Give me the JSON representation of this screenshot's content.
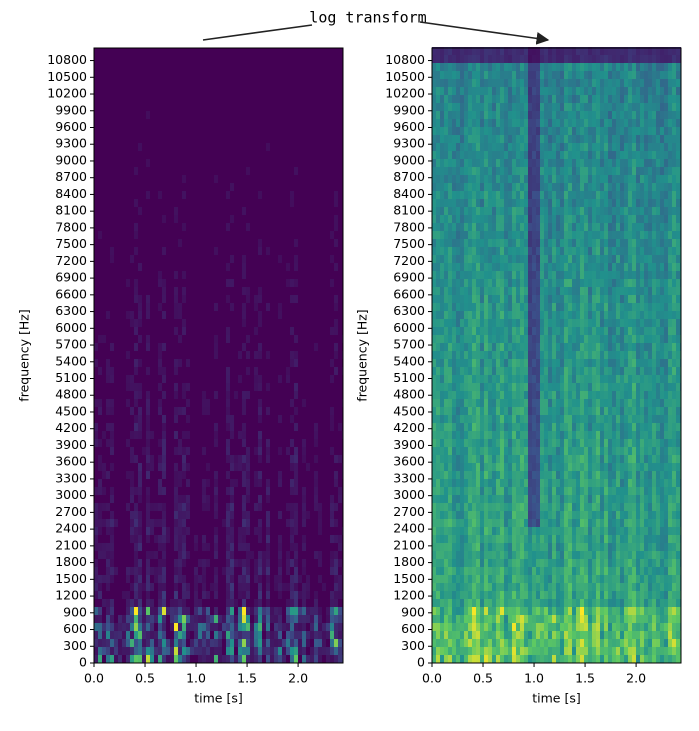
{
  "annotation": "log transform",
  "chart_data": [
    {
      "type": "heatmap",
      "scale": "linear",
      "colormap": "viridis",
      "xlabel": "time [s]",
      "ylabel": "frequency [Hz]",
      "xlim": [
        0,
        2.44
      ],
      "ylim": [
        0,
        11025
      ],
      "xticks": [
        {
          "value": 0,
          "label": "0.0"
        },
        0.5,
        {
          "value": 1,
          "label": "1.0"
        },
        1.5,
        {
          "value": 2,
          "label": "2.0"
        }
      ],
      "yticks": [
        0,
        300,
        600,
        900,
        1200,
        1500,
        1800,
        2100,
        2400,
        2700,
        3000,
        3300,
        3600,
        3900,
        4200,
        4500,
        4800,
        5100,
        5400,
        5700,
        6000,
        6300,
        6600,
        6900,
        7200,
        7500,
        7800,
        8100,
        8400,
        8700,
        9000,
        9300,
        9600,
        9900,
        10200,
        10500,
        10800
      ]
    },
    {
      "type": "heatmap",
      "scale": "log",
      "colormap": "viridis",
      "xlabel": "time [s]",
      "ylabel": "frequency [Hz]",
      "xlim": [
        0,
        2.44
      ],
      "ylim": [
        0,
        11025
      ],
      "xticks": [
        {
          "value": 0,
          "label": "0.0"
        },
        0.5,
        {
          "value": 1,
          "label": "1.0"
        },
        1.5,
        {
          "value": 2,
          "label": "2.0"
        }
      ],
      "yticks": [
        0,
        300,
        600,
        900,
        1200,
        1500,
        1800,
        2100,
        2400,
        2700,
        3000,
        3300,
        3600,
        3900,
        4200,
        4500,
        4800,
        5100,
        5400,
        5700,
        6000,
        6300,
        6600,
        6900,
        7200,
        7500,
        7800,
        8100,
        8400,
        8700,
        9000,
        9300,
        9600,
        9900,
        10200,
        10500,
        10800
      ]
    }
  ]
}
